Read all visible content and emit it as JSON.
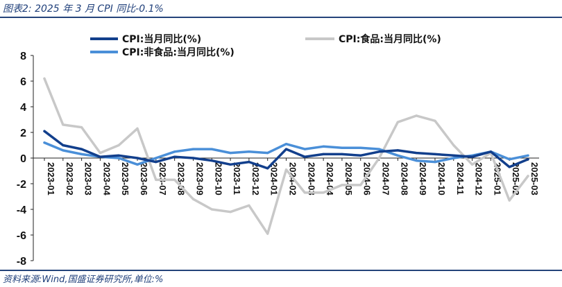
{
  "header": {
    "title": "图表2:  2025 年 3 月 CPI 同比-0.1%"
  },
  "footer": {
    "source": "资料来源:Wind,国盛证券研究所,单位:%"
  },
  "colors": {
    "series_total": "#123f8c",
    "series_food": "#c8c8c8",
    "series_nonfood": "#4a8fd8",
    "rule": "#24437a",
    "title": "#1f3f7a"
  },
  "chart_data": {
    "type": "line",
    "title": "",
    "xlabel": "",
    "ylabel": "",
    "ylim": [
      -8,
      8
    ],
    "yticks": [
      "8",
      "6",
      "4",
      "2",
      "0",
      "-2",
      "-4",
      "-6",
      "-8"
    ],
    "grid": false,
    "legend_position": "top",
    "categories": [
      "2023-01",
      "2023-02",
      "2023-03",
      "2023-04",
      "2023-05",
      "2023-06",
      "2023-07",
      "2023-08",
      "2023-09",
      "2023-10",
      "2023-11",
      "2023-12",
      "2024-01",
      "2024-02",
      "2024-03",
      "2024-04",
      "2024-05",
      "2024-06",
      "2024-07",
      "2024-08",
      "2024-09",
      "2024-10",
      "2024-11",
      "2024-12",
      "2025-01",
      "2025-02",
      "2025-03"
    ],
    "series": [
      {
        "name": "CPI:当月同比(%)",
        "values": [
          2.1,
          1.0,
          0.7,
          0.1,
          0.2,
          0.0,
          -0.3,
          0.1,
          0.0,
          -0.2,
          -0.5,
          -0.3,
          -0.8,
          0.7,
          0.1,
          0.3,
          0.3,
          0.2,
          0.5,
          0.6,
          0.4,
          0.3,
          0.2,
          0.1,
          0.5,
          -0.7,
          -0.1
        ]
      },
      {
        "name": "CPI:食品:当月同比(%)",
        "values": [
          6.2,
          2.6,
          2.4,
          0.4,
          1.0,
          2.3,
          -1.7,
          -1.7,
          -3.2,
          -4.0,
          -4.2,
          -3.7,
          -5.9,
          -0.9,
          -2.7,
          -2.7,
          -2.1,
          -2.1,
          0.0,
          2.8,
          3.3,
          2.9,
          1.0,
          -0.5,
          0.4,
          -3.3,
          -1.4
        ]
      },
      {
        "name": "CPI:非食品:当月同比(%)",
        "values": [
          1.2,
          0.6,
          0.3,
          0.1,
          0.0,
          -0.5,
          0.0,
          0.5,
          0.7,
          0.7,
          0.4,
          0.5,
          0.4,
          1.1,
          0.7,
          0.9,
          0.8,
          0.8,
          0.7,
          0.2,
          -0.2,
          -0.3,
          0.0,
          0.2,
          0.5,
          -0.1,
          0.2
        ]
      }
    ]
  }
}
